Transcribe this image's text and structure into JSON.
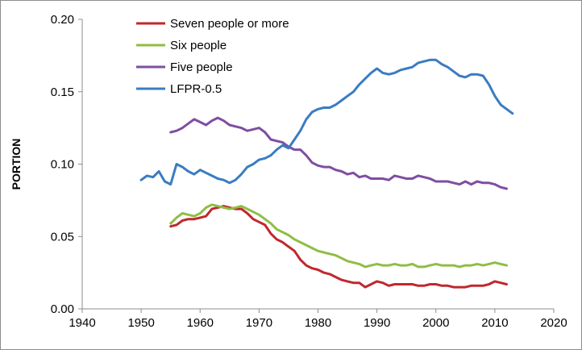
{
  "chart_data": {
    "type": "line",
    "title": "",
    "xlabel": "",
    "ylabel": "PORTION",
    "xlim": [
      1940,
      2020
    ],
    "ylim": [
      0,
      0.2
    ],
    "x_ticks": [
      "1940",
      "1950",
      "1960",
      "1970",
      "1980",
      "1990",
      "2000",
      "2010",
      "2020"
    ],
    "y_ticks": [
      "0.00",
      "0.05",
      "0.10",
      "0.15",
      "0.20"
    ],
    "grid": false,
    "legend_position": "top-left",
    "series": [
      {
        "name": "Seven people or more",
        "color": "#c0282d",
        "points": [
          [
            1955,
            0.057
          ],
          [
            1956,
            0.058
          ],
          [
            1957,
            0.061
          ],
          [
            1958,
            0.062
          ],
          [
            1959,
            0.062
          ],
          [
            1960,
            0.063
          ],
          [
            1961,
            0.064
          ],
          [
            1962,
            0.069
          ],
          [
            1963,
            0.07
          ],
          [
            1964,
            0.071
          ],
          [
            1965,
            0.07
          ],
          [
            1966,
            0.069
          ],
          [
            1967,
            0.069
          ],
          [
            1968,
            0.066
          ],
          [
            1969,
            0.062
          ],
          [
            1970,
            0.06
          ],
          [
            1971,
            0.058
          ],
          [
            1972,
            0.052
          ],
          [
            1973,
            0.048
          ],
          [
            1974,
            0.046
          ],
          [
            1975,
            0.043
          ],
          [
            1976,
            0.04
          ],
          [
            1977,
            0.034
          ],
          [
            1978,
            0.03
          ],
          [
            1979,
            0.028
          ],
          [
            1980,
            0.027
          ],
          [
            1981,
            0.025
          ],
          [
            1982,
            0.024
          ],
          [
            1983,
            0.022
          ],
          [
            1984,
            0.02
          ],
          [
            1985,
            0.019
          ],
          [
            1986,
            0.018
          ],
          [
            1987,
            0.018
          ],
          [
            1988,
            0.015
          ],
          [
            1989,
            0.017
          ],
          [
            1990,
            0.019
          ],
          [
            1991,
            0.018
          ],
          [
            1992,
            0.016
          ],
          [
            1993,
            0.017
          ],
          [
            1994,
            0.017
          ],
          [
            1995,
            0.017
          ],
          [
            1996,
            0.017
          ],
          [
            1997,
            0.016
          ],
          [
            1998,
            0.016
          ],
          [
            1999,
            0.017
          ],
          [
            2000,
            0.017
          ],
          [
            2001,
            0.016
          ],
          [
            2002,
            0.016
          ],
          [
            2003,
            0.015
          ],
          [
            2004,
            0.015
          ],
          [
            2005,
            0.015
          ],
          [
            2006,
            0.016
          ],
          [
            2007,
            0.016
          ],
          [
            2008,
            0.016
          ],
          [
            2009,
            0.017
          ],
          [
            2010,
            0.019
          ],
          [
            2011,
            0.018
          ],
          [
            2012,
            0.017
          ]
        ]
      },
      {
        "name": "Six people",
        "color": "#8fbe44",
        "points": [
          [
            1955,
            0.059
          ],
          [
            1956,
            0.063
          ],
          [
            1957,
            0.066
          ],
          [
            1958,
            0.065
          ],
          [
            1959,
            0.064
          ],
          [
            1960,
            0.066
          ],
          [
            1961,
            0.07
          ],
          [
            1962,
            0.072
          ],
          [
            1963,
            0.071
          ],
          [
            1964,
            0.07
          ],
          [
            1965,
            0.069
          ],
          [
            1966,
            0.07
          ],
          [
            1967,
            0.071
          ],
          [
            1968,
            0.069
          ],
          [
            1969,
            0.067
          ],
          [
            1970,
            0.065
          ],
          [
            1971,
            0.062
          ],
          [
            1972,
            0.059
          ],
          [
            1973,
            0.055
          ],
          [
            1974,
            0.053
          ],
          [
            1975,
            0.051
          ],
          [
            1976,
            0.048
          ],
          [
            1977,
            0.046
          ],
          [
            1978,
            0.044
          ],
          [
            1979,
            0.042
          ],
          [
            1980,
            0.04
          ],
          [
            1981,
            0.039
          ],
          [
            1982,
            0.038
          ],
          [
            1983,
            0.037
          ],
          [
            1984,
            0.035
          ],
          [
            1985,
            0.033
          ],
          [
            1986,
            0.032
          ],
          [
            1987,
            0.031
          ],
          [
            1988,
            0.029
          ],
          [
            1989,
            0.03
          ],
          [
            1990,
            0.031
          ],
          [
            1991,
            0.03
          ],
          [
            1992,
            0.03
          ],
          [
            1993,
            0.031
          ],
          [
            1994,
            0.03
          ],
          [
            1995,
            0.03
          ],
          [
            1996,
            0.031
          ],
          [
            1997,
            0.029
          ],
          [
            1998,
            0.029
          ],
          [
            1999,
            0.03
          ],
          [
            2000,
            0.031
          ],
          [
            2001,
            0.03
          ],
          [
            2002,
            0.03
          ],
          [
            2003,
            0.03
          ],
          [
            2004,
            0.029
          ],
          [
            2005,
            0.03
          ],
          [
            2006,
            0.03
          ],
          [
            2007,
            0.031
          ],
          [
            2008,
            0.03
          ],
          [
            2009,
            0.031
          ],
          [
            2010,
            0.032
          ],
          [
            2011,
            0.031
          ],
          [
            2012,
            0.03
          ]
        ]
      },
      {
        "name": "Five people",
        "color": "#7f4ea1",
        "points": [
          [
            1955,
            0.122
          ],
          [
            1956,
            0.123
          ],
          [
            1957,
            0.125
          ],
          [
            1958,
            0.128
          ],
          [
            1959,
            0.131
          ],
          [
            1960,
            0.129
          ],
          [
            1961,
            0.127
          ],
          [
            1962,
            0.13
          ],
          [
            1963,
            0.132
          ],
          [
            1964,
            0.13
          ],
          [
            1965,
            0.127
          ],
          [
            1966,
            0.126
          ],
          [
            1967,
            0.125
          ],
          [
            1968,
            0.123
          ],
          [
            1969,
            0.124
          ],
          [
            1970,
            0.125
          ],
          [
            1971,
            0.122
          ],
          [
            1972,
            0.117
          ],
          [
            1973,
            0.116
          ],
          [
            1974,
            0.115
          ],
          [
            1975,
            0.112
          ],
          [
            1976,
            0.11
          ],
          [
            1977,
            0.11
          ],
          [
            1978,
            0.106
          ],
          [
            1979,
            0.101
          ],
          [
            1980,
            0.099
          ],
          [
            1981,
            0.098
          ],
          [
            1982,
            0.098
          ],
          [
            1983,
            0.096
          ],
          [
            1984,
            0.095
          ],
          [
            1985,
            0.093
          ],
          [
            1986,
            0.094
          ],
          [
            1987,
            0.091
          ],
          [
            1988,
            0.092
          ],
          [
            1989,
            0.09
          ],
          [
            1990,
            0.09
          ],
          [
            1991,
            0.09
          ],
          [
            1992,
            0.089
          ],
          [
            1993,
            0.092
          ],
          [
            1994,
            0.091
          ],
          [
            1995,
            0.09
          ],
          [
            1996,
            0.09
          ],
          [
            1997,
            0.092
          ],
          [
            1998,
            0.091
          ],
          [
            1999,
            0.09
          ],
          [
            2000,
            0.088
          ],
          [
            2001,
            0.088
          ],
          [
            2002,
            0.088
          ],
          [
            2003,
            0.087
          ],
          [
            2004,
            0.086
          ],
          [
            2005,
            0.088
          ],
          [
            2006,
            0.086
          ],
          [
            2007,
            0.088
          ],
          [
            2008,
            0.087
          ],
          [
            2009,
            0.087
          ],
          [
            2010,
            0.086
          ],
          [
            2011,
            0.084
          ],
          [
            2012,
            0.083
          ]
        ]
      },
      {
        "name": "LFPR-0.5",
        "color": "#3a7cc2",
        "points": [
          [
            1950,
            0.089
          ],
          [
            1951,
            0.092
          ],
          [
            1952,
            0.091
          ],
          [
            1953,
            0.095
          ],
          [
            1954,
            0.088
          ],
          [
            1955,
            0.086
          ],
          [
            1956,
            0.1
          ],
          [
            1957,
            0.098
          ],
          [
            1958,
            0.095
          ],
          [
            1959,
            0.093
          ],
          [
            1960,
            0.096
          ],
          [
            1961,
            0.094
          ],
          [
            1962,
            0.092
          ],
          [
            1963,
            0.09
          ],
          [
            1964,
            0.089
          ],
          [
            1965,
            0.087
          ],
          [
            1966,
            0.089
          ],
          [
            1967,
            0.093
          ],
          [
            1968,
            0.098
          ],
          [
            1969,
            0.1
          ],
          [
            1970,
            0.103
          ],
          [
            1971,
            0.104
          ],
          [
            1972,
            0.106
          ],
          [
            1973,
            0.11
          ],
          [
            1974,
            0.113
          ],
          [
            1975,
            0.111
          ],
          [
            1976,
            0.117
          ],
          [
            1977,
            0.123
          ],
          [
            1978,
            0.131
          ],
          [
            1979,
            0.136
          ],
          [
            1980,
            0.138
          ],
          [
            1981,
            0.139
          ],
          [
            1982,
            0.139
          ],
          [
            1983,
            0.141
          ],
          [
            1984,
            0.144
          ],
          [
            1985,
            0.147
          ],
          [
            1986,
            0.15
          ],
          [
            1987,
            0.155
          ],
          [
            1988,
            0.159
          ],
          [
            1989,
            0.163
          ],
          [
            1990,
            0.166
          ],
          [
            1991,
            0.163
          ],
          [
            1992,
            0.162
          ],
          [
            1993,
            0.163
          ],
          [
            1994,
            0.165
          ],
          [
            1995,
            0.166
          ],
          [
            1996,
            0.167
          ],
          [
            1997,
            0.17
          ],
          [
            1998,
            0.171
          ],
          [
            1999,
            0.172
          ],
          [
            2000,
            0.172
          ],
          [
            2001,
            0.169
          ],
          [
            2002,
            0.167
          ],
          [
            2003,
            0.164
          ],
          [
            2004,
            0.161
          ],
          [
            2005,
            0.16
          ],
          [
            2006,
            0.162
          ],
          [
            2007,
            0.162
          ],
          [
            2008,
            0.161
          ],
          [
            2009,
            0.155
          ],
          [
            2010,
            0.147
          ],
          [
            2011,
            0.141
          ],
          [
            2012,
            0.138
          ],
          [
            2013,
            0.135
          ]
        ]
      }
    ]
  }
}
